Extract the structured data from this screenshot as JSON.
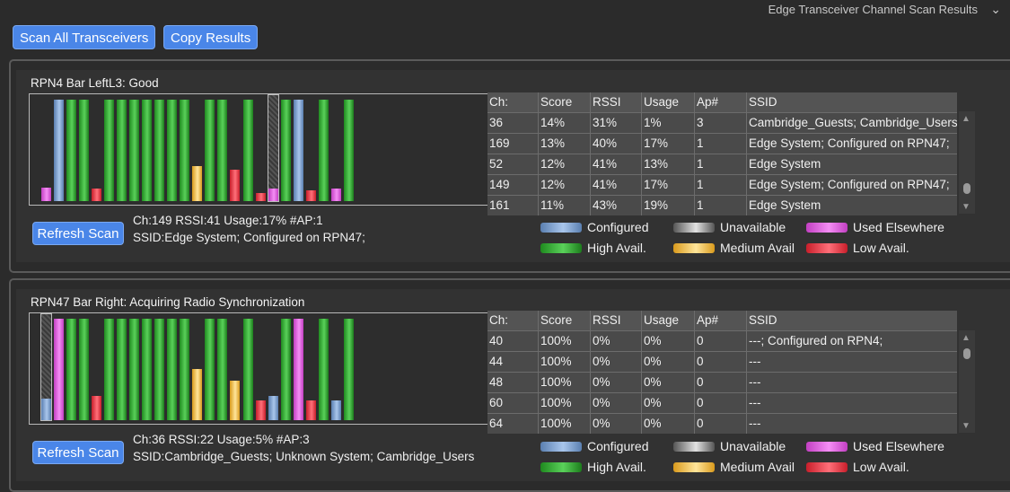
{
  "header": {
    "title": "Edge Transceiver Channel Scan Results",
    "chevron_icon": "chevron-down-icon"
  },
  "toolbar": {
    "scan_all_label": "Scan All Transceivers",
    "copy_label": "Copy Results"
  },
  "table_headers": [
    "Ch:",
    "Score",
    "RSSI",
    "Usage",
    "Ap#",
    "SSID"
  ],
  "legend": {
    "configured": "Configured",
    "unavailable": "Unavailable",
    "used_elsewhere": "Used Elsewhere",
    "high": "High Avail.",
    "medium": "Medium Avail",
    "low": "Low Avail."
  },
  "panels": [
    {
      "title": "RPN4  Bar LeftL3: Good",
      "refresh_label": "Refresh Scan",
      "info_line1": "Ch:149 RSSI:41 Usage:17% #AP:1",
      "info_line2": "SSID:Edge System; Configured on RPN47;",
      "bars": [
        {
          "c": "pink",
          "h": 0.13
        },
        {
          "c": "blue",
          "h": 0.96
        },
        {
          "c": "g",
          "h": 0.96
        },
        {
          "c": "g",
          "h": 0.96
        },
        {
          "c": "red",
          "h": 0.12
        },
        {
          "c": "g",
          "h": 0.96
        },
        {
          "c": "g",
          "h": 0.96
        },
        {
          "c": "g",
          "h": 0.96
        },
        {
          "c": "g",
          "h": 0.96
        },
        {
          "c": "g",
          "h": 0.96
        },
        {
          "c": "g",
          "h": 0.96
        },
        {
          "c": "g",
          "h": 0.96
        },
        {
          "c": "yellow",
          "h": 0.33
        },
        {
          "c": "g",
          "h": 0.96
        },
        {
          "c": "g",
          "h": 0.96
        },
        {
          "c": "red",
          "h": 0.3
        },
        {
          "c": "g",
          "h": 0.96
        },
        {
          "c": "red",
          "h": 0.08
        },
        {
          "c": "pink",
          "h": 0.12,
          "sel": true
        },
        {
          "c": "g",
          "h": 0.96
        },
        {
          "c": "blue",
          "h": 0.96
        },
        {
          "c": "red",
          "h": 0.1
        },
        {
          "c": "g",
          "h": 0.96
        },
        {
          "c": "pink",
          "h": 0.12
        },
        {
          "c": "g",
          "h": 0.96
        }
      ],
      "rows": [
        [
          "36",
          "14%",
          "31%",
          "1%",
          "3",
          "Cambridge_Guests; Cambridge_Users"
        ],
        [
          "169",
          "13%",
          "40%",
          "17%",
          "1",
          "Edge System; Configured on RPN47;"
        ],
        [
          "52",
          "12%",
          "41%",
          "13%",
          "1",
          "Edge System"
        ],
        [
          "149",
          "12%",
          "41%",
          "17%",
          "1",
          "Edge System; Configured on RPN47;"
        ],
        [
          "161",
          "11%",
          "43%",
          "19%",
          "1",
          "Edge System"
        ]
      ]
    },
    {
      "title": "RPN47  Bar Right: Acquiring Radio Synchronization",
      "refresh_label": "Refresh Scan",
      "info_line1": "Ch:36 RSSI:22 Usage:5% #AP:3",
      "info_line2": "SSID:Cambridge_Guests; Unknown System; Cambridge_Users",
      "bars": [
        {
          "c": "blue",
          "h": 0.2,
          "sel": true
        },
        {
          "c": "pink",
          "h": 0.96
        },
        {
          "c": "g",
          "h": 0.96
        },
        {
          "c": "g",
          "h": 0.96
        },
        {
          "c": "red",
          "h": 0.23
        },
        {
          "c": "g",
          "h": 0.96
        },
        {
          "c": "g",
          "h": 0.96
        },
        {
          "c": "g",
          "h": 0.96
        },
        {
          "c": "g",
          "h": 0.96
        },
        {
          "c": "g",
          "h": 0.96
        },
        {
          "c": "g",
          "h": 0.96
        },
        {
          "c": "g",
          "h": 0.96
        },
        {
          "c": "yellow",
          "h": 0.48
        },
        {
          "c": "g",
          "h": 0.96
        },
        {
          "c": "g",
          "h": 0.96
        },
        {
          "c": "yellow",
          "h": 0.37
        },
        {
          "c": "g",
          "h": 0.96
        },
        {
          "c": "red",
          "h": 0.19
        },
        {
          "c": "blue",
          "h": 0.23
        },
        {
          "c": "g",
          "h": 0.96
        },
        {
          "c": "pink",
          "h": 0.96
        },
        {
          "c": "red",
          "h": 0.19
        },
        {
          "c": "g",
          "h": 0.96
        },
        {
          "c": "blue",
          "h": 0.19
        },
        {
          "c": "g",
          "h": 0.96
        }
      ],
      "rows": [
        [
          "40",
          "100%",
          "0%",
          "0%",
          "0",
          "---; Configured on RPN4;"
        ],
        [
          "44",
          "100%",
          "0%",
          "0%",
          "0",
          "---"
        ],
        [
          "48",
          "100%",
          "0%",
          "0%",
          "0",
          "---"
        ],
        [
          "60",
          "100%",
          "0%",
          "0%",
          "0",
          "---"
        ],
        [
          "64",
          "100%",
          "0%",
          "0%",
          "0",
          "---"
        ]
      ]
    }
  ]
}
